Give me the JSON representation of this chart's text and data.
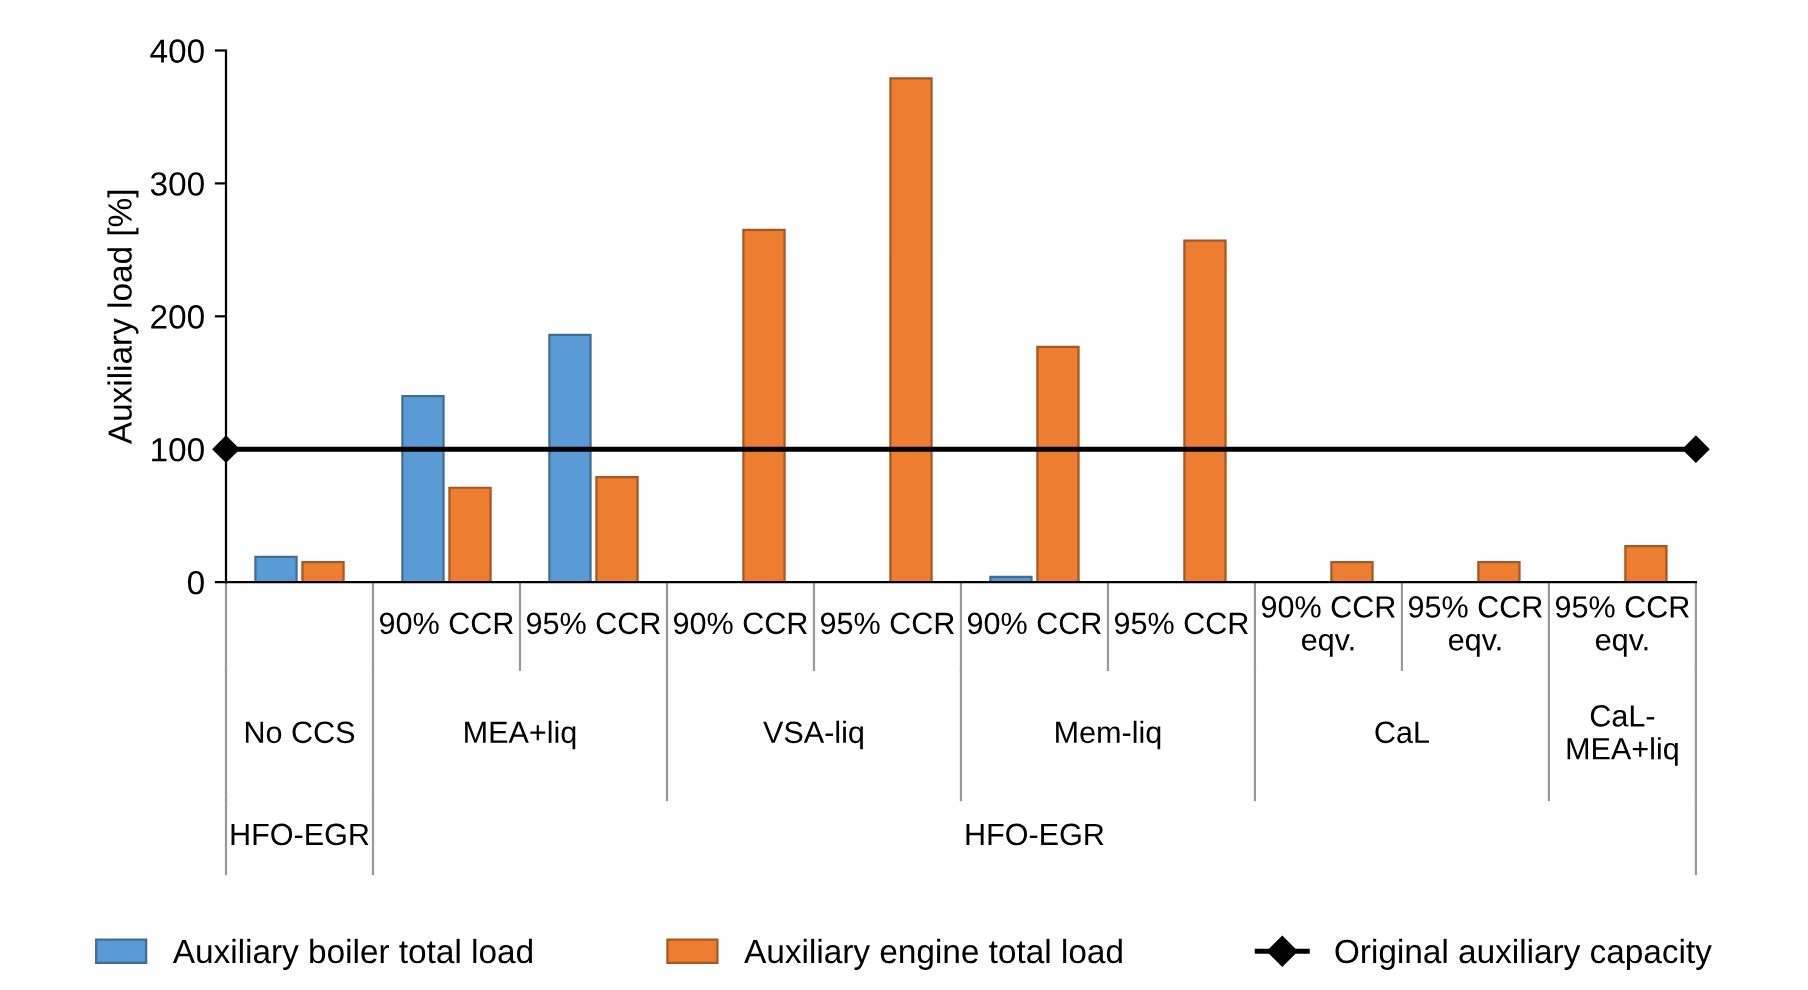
{
  "chart_data": {
    "type": "bar",
    "ylabel": "Auxiliary load [%]",
    "categories": [
      null,
      "90% CCR",
      "95% CCR",
      "90% CCR",
      "95% CCR",
      "90% CCR",
      "95% CCR",
      "90% CCR\neqv.",
      "95% CCR\neqv.",
      "95% CCR\neqv."
    ],
    "series": [
      {
        "name": "Auxiliary boiler total load",
        "color": "#5b9bd5",
        "values": [
          19,
          140,
          186,
          null,
          null,
          4,
          null,
          null,
          null,
          null
        ]
      },
      {
        "name": "Auxiliary engine total load",
        "color": "#ed7d31",
        "values": [
          15,
          71,
          79,
          265,
          379,
          177,
          257,
          15,
          15,
          27
        ]
      }
    ],
    "ylim": [
      0,
      400
    ],
    "yticks": [
      0,
      100,
      200,
      300,
      400
    ],
    "ref_lines": [
      {
        "axis": "y",
        "value": 100,
        "label": "Original auxiliary capacity",
        "color": "#000000"
      }
    ],
    "annotations": [
      "No CCS",
      "MEA+liq",
      "VSA-liq",
      "Mem-liq",
      "CaL",
      "CaL-\nMEA+liq",
      "HFO-EGR",
      "HFO-EGR"
    ],
    "grid": false,
    "legend": "bottom",
    "marker": "diamond"
  }
}
